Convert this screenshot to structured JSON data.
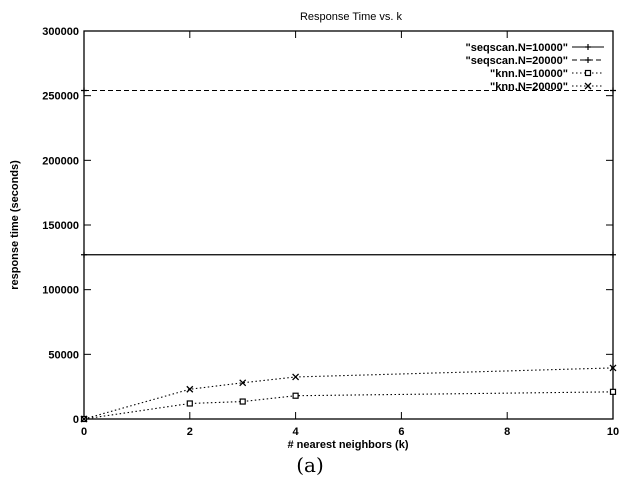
{
  "chart_data": {
    "type": "line",
    "title": "Response Time vs. k",
    "xlabel": "# nearest neighbors (k)",
    "ylabel": "response time (seconds)",
    "xlim": [
      0,
      10
    ],
    "ylim": [
      0,
      300000
    ],
    "xticks": [
      0,
      2,
      4,
      6,
      8,
      10
    ],
    "yticks": [
      0,
      50000,
      100000,
      150000,
      200000,
      250000,
      300000
    ],
    "grid": false,
    "legend_position": "top-right",
    "series": [
      {
        "name": "\"seqscan.N=10000\"",
        "style": "solid",
        "marker": "plus",
        "x": [
          0,
          10
        ],
        "y": [
          127000,
          127000
        ]
      },
      {
        "name": "\"seqscan.N=20000\"",
        "style": "dashed",
        "marker": "plus",
        "x": [
          0,
          10
        ],
        "y": [
          254000,
          254000
        ]
      },
      {
        "name": "\"knn.N=10000\"",
        "style": "dotted",
        "marker": "square",
        "x": [
          0,
          2,
          3,
          4,
          10
        ],
        "y": [
          0,
          12000,
          13500,
          18000,
          21000
        ]
      },
      {
        "name": "\"knn.N=20000\"",
        "style": "dotted",
        "marker": "x",
        "x": [
          0,
          2,
          3,
          4,
          10
        ],
        "y": [
          0,
          23000,
          28000,
          32500,
          39500
        ]
      }
    ]
  },
  "caption": "(a)"
}
